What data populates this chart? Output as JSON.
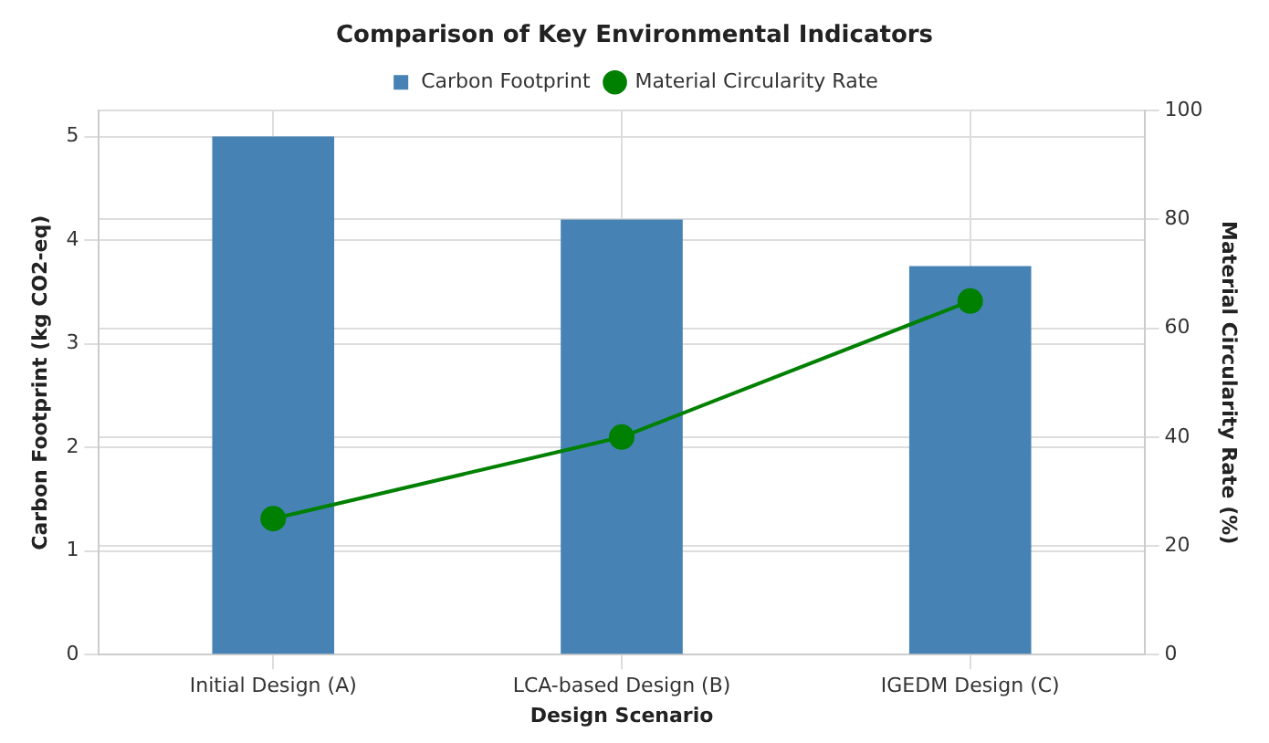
{
  "chart_data": {
    "type": "bar",
    "title": "Comparison of Key Environmental Indicators",
    "xlabel": "Design Scenario",
    "ylabel": "Carbon Footprint (kg CO2-eq)",
    "y2label": "Material Circularity Rate (%)",
    "categories": [
      "Initial Design (A)",
      "LCA-based Design (B)",
      "IGEDM Design (C)"
    ],
    "series": [
      {
        "name": "Carbon Footprint",
        "color": "#4682b4",
        "values": [
          5.0,
          4.2,
          3.75
        ]
      },
      {
        "name": "Material Circularity Rate",
        "type": "line",
        "axis": "y2",
        "color": "#008000",
        "values": [
          25,
          40,
          65
        ]
      }
    ],
    "ylim": [
      0,
      5.25
    ],
    "yticks": [
      0,
      1,
      2,
      3,
      4,
      5
    ],
    "y2lim": [
      0,
      100
    ],
    "y2ticks": [
      0,
      20,
      40,
      60,
      80,
      100
    ],
    "grid": true,
    "legend": "top",
    "marker": "circle",
    "line_style": "solid"
  }
}
